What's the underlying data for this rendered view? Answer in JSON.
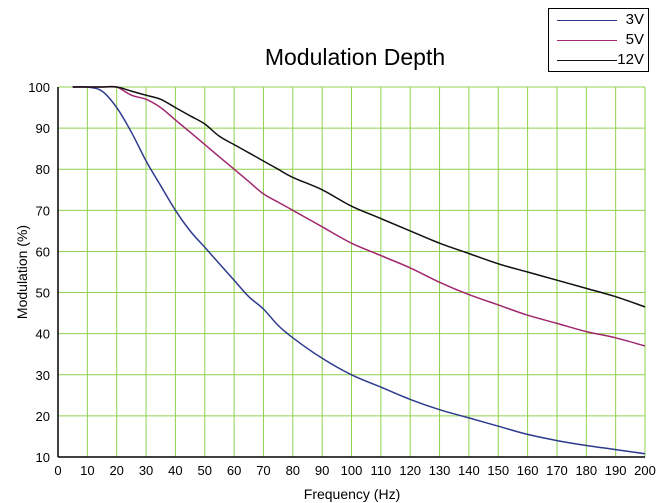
{
  "chart_data": {
    "type": "line",
    "title": "Modulation Depth",
    "xlabel": "Frequency (Hz)",
    "ylabel": "Modulation (%)",
    "xlim": [
      0,
      200
    ],
    "ylim": [
      10,
      100
    ],
    "xticks": [
      0,
      10,
      20,
      30,
      40,
      50,
      60,
      70,
      80,
      90,
      100,
      110,
      120,
      130,
      140,
      150,
      160,
      170,
      180,
      190,
      200
    ],
    "yticks": [
      10,
      20,
      30,
      40,
      50,
      60,
      70,
      80,
      90,
      100
    ],
    "grid": true,
    "grid_color": "#8fd14f",
    "legend_position": "top-right",
    "series": [
      {
        "name": "3V",
        "color": "#2e3a8f",
        "x": [
          5,
          10,
          15,
          20,
          25,
          30,
          35,
          40,
          45,
          50,
          55,
          60,
          65,
          70,
          75,
          80,
          90,
          100,
          110,
          120,
          130,
          140,
          150,
          160,
          170,
          180,
          190,
          200
        ],
        "y": [
          100,
          100,
          99,
          95,
          89,
          82,
          76,
          70,
          65,
          61,
          57,
          53,
          49,
          46,
          42,
          39,
          34,
          30,
          27,
          24,
          21.5,
          19.5,
          17.5,
          15.5,
          14,
          12.8,
          11.8,
          10.8
        ]
      },
      {
        "name": "5V",
        "color": "#a0286e",
        "x": [
          5,
          10,
          15,
          20,
          25,
          30,
          35,
          40,
          45,
          50,
          55,
          60,
          65,
          70,
          75,
          80,
          90,
          100,
          110,
          120,
          130,
          140,
          150,
          160,
          170,
          180,
          190,
          200
        ],
        "y": [
          100,
          100,
          100,
          100,
          98,
          97,
          95,
          92,
          89,
          86,
          83,
          80,
          77,
          74,
          72,
          70,
          66,
          62,
          59,
          56,
          52.5,
          49.5,
          47,
          44.5,
          42.5,
          40.5,
          39,
          37
        ]
      },
      {
        "name": "12V",
        "color": "#111111",
        "x": [
          5,
          10,
          15,
          20,
          25,
          30,
          35,
          40,
          45,
          50,
          55,
          60,
          65,
          70,
          75,
          80,
          90,
          100,
          110,
          120,
          130,
          140,
          150,
          160,
          170,
          180,
          190,
          200
        ],
        "y": [
          100,
          100,
          100,
          100,
          99,
          98,
          97,
          95,
          93,
          91,
          88,
          86,
          84,
          82,
          80,
          78,
          75,
          71,
          68,
          65,
          62,
          59.5,
          57,
          55,
          53,
          51,
          49,
          46.5
        ]
      }
    ]
  }
}
